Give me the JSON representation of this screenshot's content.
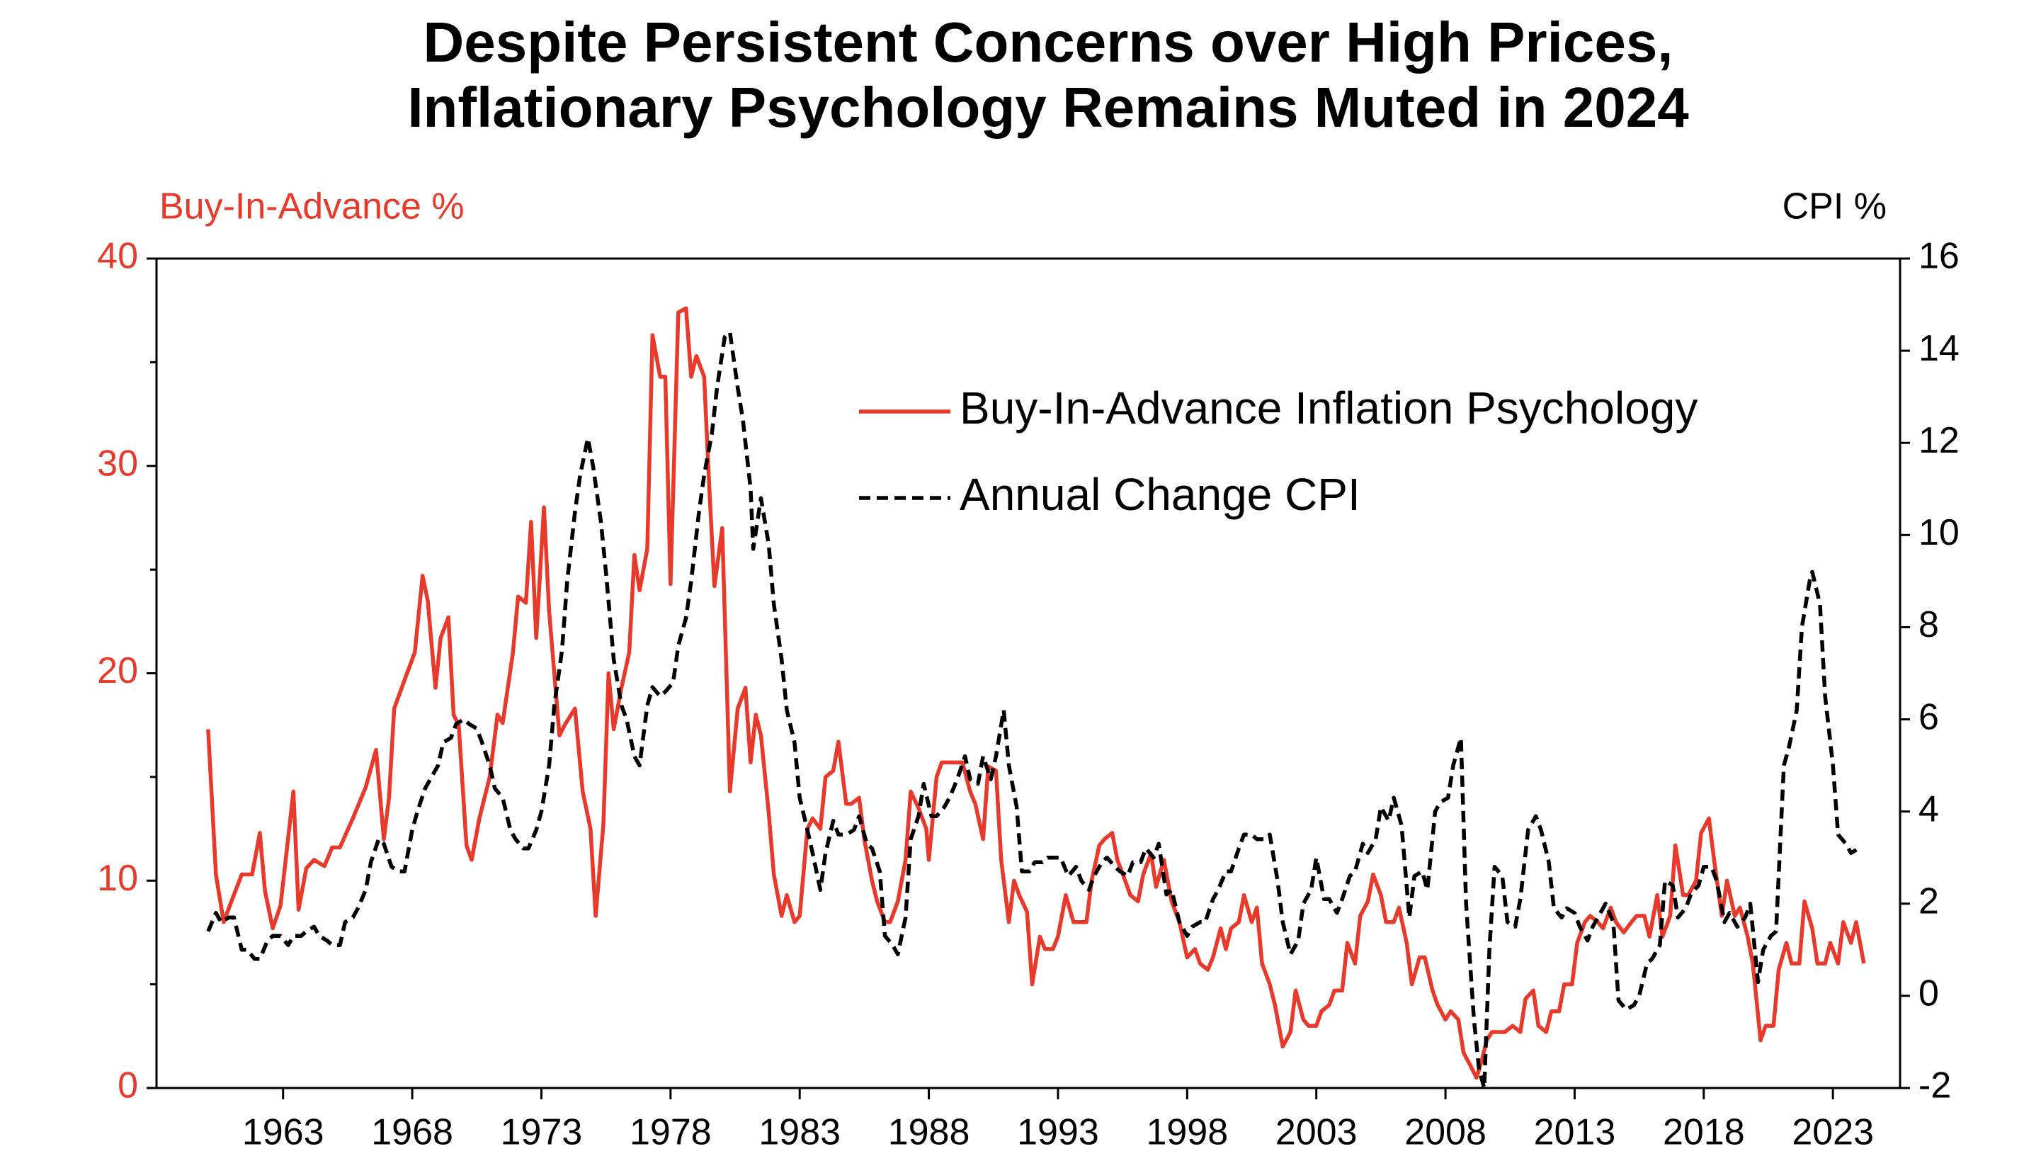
{
  "chart_data": {
    "type": "line",
    "title": [
      "Despite Persistent Concerns over High Prices,",
      "Inflationary Psychology Remains Muted in 2024"
    ],
    "y_label": "Buy-In-Advance %",
    "y2_label": "CPI %",
    "y_label_color": "#e8392a",
    "xlim": [
      1958.1,
      2025.6
    ],
    "xticks": [
      1963,
      1968,
      1973,
      1978,
      1983,
      1988,
      1993,
      1998,
      2003,
      2008,
      2013,
      2018,
      2023
    ],
    "ylim": [
      0,
      40
    ],
    "yticks": [
      0,
      10,
      20,
      30,
      40
    ],
    "yticks_minor": [
      5,
      15,
      25,
      35
    ],
    "y2lim": [
      -2,
      16
    ],
    "y2ticks": [
      -2,
      0,
      2,
      4,
      6,
      8,
      10,
      12,
      14,
      16
    ],
    "series": [
      {
        "name": "Buy-In-Advance Inflation Psychology",
        "color": "#e8392a",
        "line_style": "solid",
        "axis": "y",
        "x": [
          1960.1,
          1960.4,
          1960.7,
          1961.0,
          1961.4,
          1961.8,
          1962.1,
          1962.3,
          1962.6,
          1962.9,
          1963.4,
          1963.6,
          1963.9,
          1964.2,
          1964.6,
          1964.9,
          1965.2,
          1965.7,
          1966.2,
          1966.6,
          1966.9,
          1967.1,
          1967.3,
          1967.8,
          1968.1,
          1968.4,
          1968.6,
          1968.9,
          1969.1,
          1969.4,
          1969.6,
          1969.8,
          1970.1,
          1970.3,
          1970.6,
          1971.0,
          1971.3,
          1971.5,
          1971.9,
          1972.1,
          1972.4,
          1972.6,
          1972.8,
          1973.1,
          1973.3,
          1973.7,
          1973.9,
          1974.3,
          1974.6,
          1974.9,
          1975.1,
          1975.4,
          1975.6,
          1975.8,
          1976.1,
          1976.4,
          1976.6,
          1976.8,
          1977.1,
          1977.3,
          1977.6,
          1977.8,
          1978.0,
          1978.3,
          1978.6,
          1978.8,
          1979.0,
          1979.3,
          1979.5,
          1979.7,
          1980.0,
          1980.3,
          1980.6,
          1980.9,
          1981.1,
          1981.3,
          1981.5,
          1981.8,
          1982.0,
          1982.3,
          1982.5,
          1982.8,
          1983.0,
          1983.3,
          1983.5,
          1983.8,
          1984.0,
          1984.3,
          1984.5,
          1984.8,
          1985.0,
          1985.3,
          1985.5,
          1985.8,
          1986.0,
          1986.3,
          1986.5,
          1986.8,
          1987.1,
          1987.3,
          1987.6,
          1987.9,
          1988.0,
          1988.3,
          1988.5,
          1988.9,
          1989.3,
          1989.6,
          1989.8,
          1990.1,
          1990.3,
          1990.6,
          1990.8,
          1991.1,
          1991.3,
          1991.5,
          1991.8,
          1992.0,
          1992.3,
          1992.5,
          1992.8,
          1993.0,
          1993.3,
          1993.6,
          1994.1,
          1994.3,
          1994.6,
          1994.8,
          1995.1,
          1995.3,
          1995.6,
          1995.8,
          1996.1,
          1996.3,
          1996.6,
          1996.8,
          1997.1,
          1997.4,
          1997.7,
          1998.0,
          1998.3,
          1998.5,
          1998.8,
          1999.0,
          1999.3,
          1999.5,
          1999.7,
          2000.0,
          2000.2,
          2000.5,
          2000.7,
          2000.9,
          2001.2,
          2001.4,
          2001.7,
          2002.0,
          2002.2,
          2002.5,
          2002.7,
          2003.0,
          2003.2,
          2003.5,
          2003.7,
          2004.0,
          2004.2,
          2004.5,
          2004.7,
          2005.0,
          2005.2,
          2005.5,
          2005.7,
          2006.0,
          2006.2,
          2006.5,
          2006.7,
          2007.0,
          2007.2,
          2007.5,
          2007.7,
          2008.0,
          2008.2,
          2008.5,
          2008.7,
          2009.0,
          2009.2,
          2009.4,
          2009.6,
          2009.8,
          2010.1,
          2010.3,
          2010.6,
          2010.9,
          2011.1,
          2011.4,
          2011.6,
          2011.9,
          2012.1,
          2012.4,
          2012.6,
          2012.9,
          2013.1,
          2013.4,
          2013.6,
          2013.9,
          2014.1,
          2014.4,
          2014.6,
          2014.9,
          2015.2,
          2015.4,
          2015.7,
          2015.9,
          2016.2,
          2016.4,
          2016.7,
          2016.9,
          2017.2,
          2017.4,
          2017.7,
          2017.9,
          2018.2,
          2018.4,
          2018.7,
          2018.9,
          2019.2,
          2019.4,
          2019.7,
          2019.9,
          2020.2,
          2020.4,
          2020.7,
          2020.9,
          2021.2,
          2021.4,
          2021.7,
          2021.9,
          2022.2,
          2022.4,
          2022.7,
          2022.9,
          2023.2,
          2023.4,
          2023.7,
          2023.9,
          2024.2
        ],
        "values": [
          17.3,
          10.3,
          8,
          9,
          10.3,
          10.3,
          12.3,
          9.5,
          7.7,
          8.8,
          14.3,
          8.6,
          10.6,
          11,
          10.7,
          11.6,
          11.6,
          13,
          14.5,
          16.3,
          12,
          14,
          18.3,
          20,
          21,
          24.7,
          23.5,
          19.3,
          21.7,
          22.7,
          18,
          17.5,
          11.7,
          11,
          13,
          15,
          18,
          17.6,
          21,
          23.7,
          23.4,
          27.3,
          21.7,
          28,
          23,
          17,
          17.5,
          18.3,
          14.3,
          12.5,
          8.3,
          12.7,
          20,
          17.3,
          19.3,
          21,
          25.7,
          24,
          26,
          36.3,
          34.3,
          34.3,
          24.3,
          37.4,
          37.6,
          34.3,
          35.3,
          34.3,
          29,
          24.2,
          27,
          14.3,
          18.3,
          19.3,
          15.7,
          18,
          17,
          13.3,
          10.3,
          8.3,
          9.3,
          8,
          8.3,
          12.5,
          13,
          12.5,
          15,
          15.3,
          16.7,
          13.7,
          13.7,
          14,
          12,
          10,
          9,
          8,
          8,
          9,
          11,
          14.3,
          13.5,
          12.5,
          11,
          15,
          15.7,
          15.7,
          15.7,
          14.3,
          13.7,
          12,
          15.5,
          15.3,
          11,
          8,
          10,
          9.3,
          8.5,
          5,
          7.3,
          6.7,
          6.7,
          7.3,
          9.3,
          8,
          8,
          10,
          11.7,
          12,
          12.3,
          11,
          10,
          9.3,
          9,
          10.3,
          11.3,
          9.7,
          11,
          9,
          8,
          6.3,
          6.7,
          6,
          5.7,
          6.3,
          7.7,
          6.7,
          7.7,
          8,
          9.3,
          8,
          8.7,
          6,
          5,
          4,
          2,
          2.7,
          4.7,
          3.3,
          3,
          3,
          3.7,
          4,
          4.7,
          4.7,
          7,
          6,
          8.3,
          9,
          10.3,
          9.3,
          8,
          8,
          8.7,
          7,
          5,
          6.3,
          6.3,
          4.7,
          4,
          3.3,
          3.7,
          3.3,
          1.7,
          1,
          0.5,
          1.3,
          2.3,
          2.7,
          2.7,
          2.7,
          3,
          2.7,
          4.3,
          4.7,
          3,
          2.7,
          3.7,
          3.7,
          5,
          5,
          7,
          8,
          8.3,
          8,
          7.7,
          8.7,
          8,
          7.5,
          8,
          8.3,
          8.3,
          7.3,
          9.3,
          7.3,
          8.3,
          11.7,
          9.3,
          9.3,
          10,
          12.3,
          13,
          11,
          8.3,
          10,
          8.3,
          8.7,
          7.3,
          6,
          2.3,
          3,
          3,
          5.7,
          7,
          6,
          6,
          9,
          7.7,
          6,
          6,
          7,
          6,
          8,
          7,
          8,
          6
        ]
      },
      {
        "name": "Annual Change CPI",
        "color": "#000000",
        "line_style": "dashed",
        "axis": "y2",
        "x": [
          1960.1,
          1960.4,
          1960.6,
          1960.9,
          1961.1,
          1961.4,
          1961.6,
          1961.9,
          1962.1,
          1962.4,
          1962.6,
          1962.9,
          1963.2,
          1963.4,
          1963.7,
          1963.9,
          1964.2,
          1964.4,
          1964.7,
          1964.9,
          1965.2,
          1965.4,
          1965.7,
          1965.9,
          1966.2,
          1966.4,
          1966.7,
          1966.9,
          1967.2,
          1967.5,
          1967.7,
          1968.0,
          1968.2,
          1968.5,
          1968.7,
          1969.0,
          1969.2,
          1969.5,
          1969.7,
          1970.0,
          1970.2,
          1970.5,
          1970.7,
          1971.0,
          1971.2,
          1971.5,
          1971.8,
          1972.0,
          1972.3,
          1972.5,
          1972.8,
          1973.0,
          1973.3,
          1973.5,
          1973.8,
          1974.0,
          1974.3,
          1974.5,
          1974.8,
          1975.0,
          1975.3,
          1975.5,
          1975.8,
          1976.1,
          1976.3,
          1976.6,
          1976.8,
          1977.1,
          1977.3,
          1977.6,
          1977.8,
          1978.1,
          1978.3,
          1978.6,
          1978.8,
          1979.1,
          1979.3,
          1979.6,
          1979.8,
          1980.1,
          1980.3,
          1980.6,
          1980.8,
          1981.1,
          1981.2,
          1981.5,
          1981.8,
          1982.0,
          1982.3,
          1982.5,
          1982.8,
          1983.0,
          1983.3,
          1983.5,
          1983.8,
          1984.0,
          1984.3,
          1984.5,
          1984.8,
          1985.1,
          1985.3,
          1985.6,
          1985.8,
          1986.1,
          1986.3,
          1986.6,
          1986.8,
          1987.1,
          1987.3,
          1987.6,
          1987.8,
          1988.1,
          1988.3,
          1988.6,
          1988.8,
          1989.1,
          1989.4,
          1989.6,
          1989.9,
          1990.1,
          1990.4,
          1990.6,
          1990.9,
          1991.1,
          1991.4,
          1991.6,
          1991.9,
          1992.1,
          1992.4,
          1992.6,
          1992.9,
          1993.1,
          1993.4,
          1993.7,
          1993.9,
          1994.2,
          1994.4,
          1994.7,
          1994.9,
          1995.2,
          1995.4,
          1995.7,
          1995.9,
          1996.2,
          1996.4,
          1996.7,
          1996.9,
          1997.2,
          1997.4,
          1997.7,
          1998.0,
          1998.2,
          1998.5,
          1998.7,
          1999.0,
          1999.2,
          1999.5,
          1999.7,
          2000.0,
          2000.2,
          2000.5,
          2000.7,
          2001.0,
          2001.2,
          2001.5,
          2001.7,
          2002.0,
          2002.3,
          2002.5,
          2002.8,
          2003.0,
          2003.3,
          2003.5,
          2003.8,
          2004.0,
          2004.3,
          2004.5,
          2004.8,
          2005.0,
          2005.3,
          2005.5,
          2005.8,
          2006.0,
          2006.3,
          2006.6,
          2006.8,
          2007.1,
          2007.3,
          2007.6,
          2007.8,
          2008.1,
          2008.3,
          2008.6,
          2008.8,
          2009.1,
          2009.3,
          2009.5,
          2009.7,
          2009.9,
          2010.2,
          2010.4,
          2010.7,
          2010.9,
          2011.2,
          2011.5,
          2011.7,
          2012.0,
          2012.2,
          2012.5,
          2012.7,
          2013.0,
          2013.2,
          2013.5,
          2013.7,
          2014.0,
          2014.2,
          2014.5,
          2014.7,
          2015.0,
          2015.3,
          2015.5,
          2015.8,
          2016.0,
          2016.3,
          2016.5,
          2016.8,
          2017.0,
          2017.3,
          2017.5,
          2017.8,
          2018.0,
          2018.3,
          2018.5,
          2018.8,
          2019.0,
          2019.3,
          2019.6,
          2019.8,
          2020.1,
          2020.3,
          2020.6,
          2020.8,
          2021.1,
          2021.3,
          2021.6,
          2021.8,
          2022.1,
          2022.2,
          2022.5,
          2022.7,
          2023.0,
          2023.2,
          2023.5,
          2023.7,
          2024.0
        ],
        "values": [
          1.4,
          1.8,
          1.6,
          1.7,
          1.7,
          1.0,
          1.0,
          0.8,
          0.8,
          1.2,
          1.3,
          1.3,
          1.1,
          1.3,
          1.3,
          1.4,
          1.5,
          1.3,
          1.2,
          1.1,
          1.1,
          1.6,
          1.7,
          1.9,
          2.3,
          2.9,
          3.4,
          3.3,
          2.8,
          2.7,
          2.7,
          3.6,
          4.0,
          4.5,
          4.7,
          5.0,
          5.5,
          5.6,
          5.9,
          6.0,
          5.9,
          5.8,
          5.5,
          5.0,
          4.5,
          4.3,
          3.6,
          3.4,
          3.2,
          3.2,
          3.6,
          4.0,
          5.0,
          6.3,
          7.5,
          9.0,
          10.5,
          11.3,
          12.1,
          11.5,
          10.3,
          9.2,
          7.3,
          6.3,
          6.0,
          5.2,
          5.0,
          6.3,
          6.7,
          6.5,
          6.6,
          6.8,
          7.6,
          8.2,
          9.0,
          10.5,
          11.3,
          12.2,
          13.2,
          14.3,
          14.4,
          13.2,
          12.5,
          11.0,
          9.7,
          10.8,
          9.8,
          8.5,
          7.3,
          6.2,
          5.5,
          4.3,
          3.6,
          3.1,
          2.3,
          3.1,
          3.8,
          3.5,
          3.5,
          3.6,
          3.9,
          3.3,
          3.2,
          2.7,
          1.3,
          1.1,
          0.9,
          1.7,
          3.4,
          3.9,
          4.6,
          3.9,
          3.9,
          4.1,
          4.3,
          4.7,
          5.2,
          4.7,
          4.6,
          5.2,
          4.7,
          5.2,
          6.2,
          5.0,
          4.1,
          2.7,
          2.7,
          2.9,
          2.9,
          3.0,
          3.0,
          3.0,
          2.6,
          2.8,
          2.5,
          2.3,
          2.6,
          2.9,
          3.0,
          2.8,
          2.7,
          2.6,
          2.9,
          2.9,
          3.2,
          3.0,
          3.3,
          2.2,
          2.3,
          1.6,
          1.3,
          1.5,
          1.6,
          1.6,
          2.1,
          2.3,
          2.7,
          2.7,
          3.2,
          3.5,
          3.5,
          3.4,
          3.4,
          3.5,
          2.5,
          1.6,
          0.9,
          1.2,
          2.0,
          2.3,
          3.0,
          2.1,
          2.1,
          1.8,
          2.1,
          2.6,
          2.7,
          3.3,
          3.1,
          3.4,
          4.1,
          3.8,
          4.3,
          3.7,
          1.7,
          2.6,
          2.7,
          2.3,
          4.0,
          4.2,
          4.3,
          5.0,
          5.6,
          2.0,
          -0.5,
          -1.6,
          -2.0,
          1.0,
          2.8,
          2.6,
          1.6,
          1.5,
          2.1,
          3.6,
          3.9,
          3.6,
          2.9,
          1.9,
          1.7,
          1.9,
          1.8,
          1.5,
          1.2,
          1.5,
          1.8,
          2.0,
          1.6,
          -0.1,
          -0.3,
          -0.2,
          0.0,
          0.7,
          0.8,
          1.1,
          2.5,
          2.4,
          1.7,
          1.9,
          2.2,
          2.4,
          2.8,
          2.8,
          2.5,
          1.6,
          1.8,
          1.5,
          1.7,
          2.0,
          0.3,
          1.0,
          1.3,
          1.4,
          5.0,
          5.4,
          6.2,
          8.0,
          9.0,
          9.2,
          8.5,
          6.5,
          5.0,
          3.5,
          3.3,
          3.1,
          3.2
        ]
      }
    ]
  }
}
